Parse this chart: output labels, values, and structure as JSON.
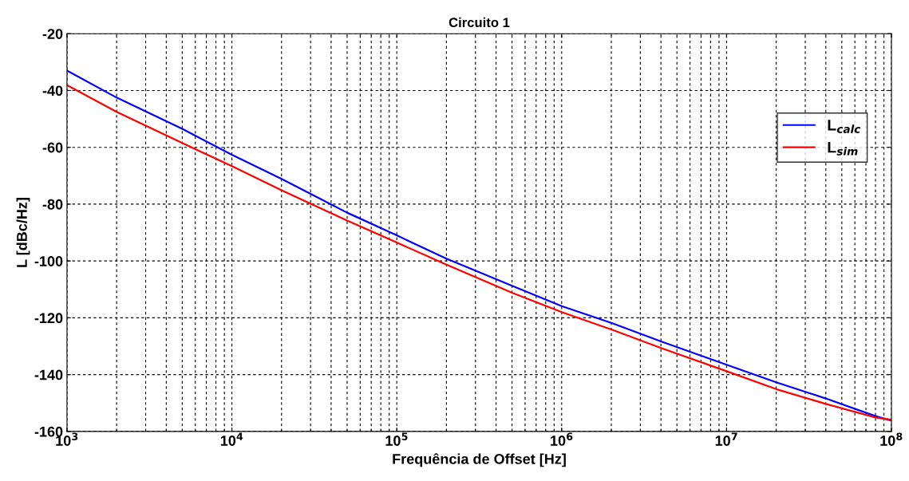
{
  "chart_data": {
    "type": "line",
    "title": "Circuito 1",
    "xlabel": "Frequência de Offset [Hz]",
    "ylabel": "L [dBc/Hz]",
    "log": "x",
    "x": [
      1000,
      2000,
      5000,
      10000,
      20000,
      50000,
      100000,
      200000,
      500000,
      1000000,
      2000000,
      4000000,
      10000000,
      20000000,
      40000000,
      80000000,
      100000000
    ],
    "series": [
      {
        "name": "L$_{calc}$",
        "color": "#0000ff",
        "values": [
          -33.0,
          -42.5,
          -53.5,
          -62.6,
          -71.1,
          -83.0,
          -91.0,
          -99.2,
          -108.7,
          -115.9,
          -121.8,
          -128.3,
          -136.5,
          -142.7,
          -148.4,
          -154.6,
          -156.2
        ]
      },
      {
        "name": "L$_{sim}$",
        "color": "#ff0000",
        "values": [
          -38.1,
          -47.5,
          -58.5,
          -66.6,
          -75.1,
          -85.8,
          -93.5,
          -101.3,
          -111.2,
          -118.0,
          -124.1,
          -130.6,
          -138.8,
          -145.1,
          -150.3,
          -155.1,
          -155.9
        ]
      }
    ],
    "xlim": [
      1000,
      100000000
    ],
    "xticks": [
      {
        "value": 1000,
        "label": "10$^{3}$"
      },
      {
        "value": 10000,
        "label": "10$^{4}$"
      },
      {
        "value": 100000,
        "label": "10$^{5}$"
      },
      {
        "value": 1000000,
        "label": "10$^{6}$"
      },
      {
        "value": 10000000,
        "label": "10$^{7}$"
      },
      {
        "value": 100000000,
        "label": "10$^{8}$"
      }
    ],
    "ylim": [
      -160,
      -20
    ],
    "yticks": [
      -160,
      -140,
      -120,
      -100,
      -80,
      -60,
      -40,
      -20
    ],
    "grid": true,
    "legend": "top right",
    "line_style": "solid",
    "marker": "none"
  }
}
